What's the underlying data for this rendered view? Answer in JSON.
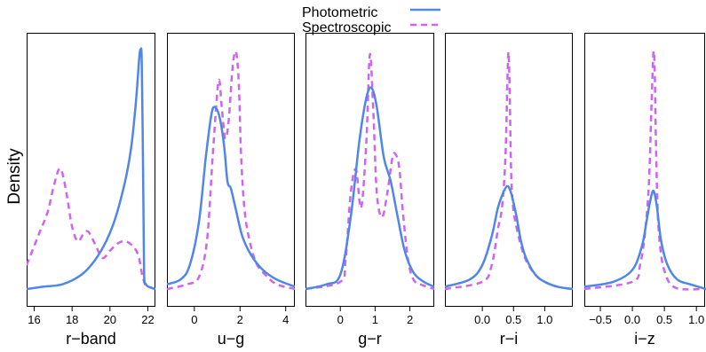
{
  "chart_data": {
    "type": "line",
    "ylabel": "Density",
    "legend": {
      "placement": "top-center",
      "entries": [
        {
          "label": "Photometric",
          "color": "#4f86e8",
          "dash": "solid"
        },
        {
          "label": "Spectroscopic",
          "color": "#cc66f0",
          "dash": "dashed"
        }
      ]
    },
    "panels": [
      {
        "xlabel": "r−band",
        "xlim": [
          15.6,
          22.4
        ],
        "ylim": [
          0,
          1
        ],
        "ticks": [
          16,
          18,
          20,
          22
        ],
        "tick_labels": [
          "16",
          "18",
          "20",
          "22"
        ],
        "series": [
          {
            "name": "Photometric",
            "x": [
              15.6,
              16.5,
              17.5,
              18.5,
              19.2,
              19.8,
              20.3,
              20.8,
              21.1,
              21.3,
              21.45,
              21.55,
              21.62,
              21.68,
              21.75,
              21.8,
              21.9,
              22.2,
              22.4
            ],
            "y": [
              0.0,
              0.01,
              0.02,
              0.06,
              0.12,
              0.2,
              0.3,
              0.45,
              0.58,
              0.72,
              0.86,
              0.97,
              1.0,
              0.95,
              0.5,
              0.08,
              0.02,
              0.005,
              0.0
            ]
          },
          {
            "name": "Spectroscopic",
            "x": [
              15.6,
              16.2,
              16.7,
              17.0,
              17.3,
              17.5,
              17.75,
              18.0,
              18.3,
              18.6,
              18.85,
              19.2,
              19.6,
              20.0,
              20.4,
              20.8,
              21.2,
              21.5,
              21.7,
              21.85,
              22.0,
              22.4
            ],
            "y": [
              0.1,
              0.22,
              0.32,
              0.42,
              0.5,
              0.48,
              0.38,
              0.26,
              0.2,
              0.23,
              0.24,
              0.19,
              0.13,
              0.16,
              0.19,
              0.2,
              0.18,
              0.14,
              0.06,
              0.02,
              0.01,
              0.0
            ]
          }
        ]
      },
      {
        "xlabel": "u−g",
        "xlim": [
          -1.2,
          4.4
        ],
        "ylim": [
          0,
          1
        ],
        "ticks": [
          0,
          2,
          4
        ],
        "tick_labels": [
          "0",
          "2",
          "4"
        ],
        "series": [
          {
            "name": "Photometric",
            "x": [
              -1.2,
              -0.6,
              -0.2,
              0.2,
              0.5,
              0.75,
              0.9,
              1.1,
              1.3,
              1.45,
              1.6,
              1.8,
              2.1,
              2.5,
              3.0,
              3.6,
              4.4
            ],
            "y": [
              0.02,
              0.04,
              0.1,
              0.28,
              0.55,
              0.73,
              0.76,
              0.72,
              0.6,
              0.45,
              0.42,
              0.34,
              0.22,
              0.14,
              0.08,
              0.04,
              0.01
            ]
          },
          {
            "name": "Spectroscopic",
            "x": [
              -1.2,
              -0.3,
              0.2,
              0.55,
              0.8,
              1.0,
              1.1,
              1.2,
              1.35,
              1.5,
              1.65,
              1.75,
              1.85,
              1.95,
              2.05,
              2.2,
              2.4,
              2.7,
              3.1,
              3.6,
              4.4
            ],
            "y": [
              0.0,
              0.02,
              0.05,
              0.2,
              0.55,
              0.82,
              0.87,
              0.76,
              0.63,
              0.7,
              0.9,
              0.98,
              0.98,
              0.85,
              0.55,
              0.33,
              0.21,
              0.11,
              0.06,
              0.02,
              0.0
            ]
          }
        ]
      },
      {
        "xlabel": "g−r",
        "xlim": [
          -1.0,
          2.7
        ],
        "ylim": [
          0,
          1
        ],
        "ticks": [
          0,
          1,
          2
        ],
        "tick_labels": [
          "0",
          "1",
          "2"
        ],
        "series": [
          {
            "name": "Photometric",
            "x": [
              -1.0,
              -0.4,
              0.0,
              0.3,
              0.55,
              0.75,
              0.9,
              1.05,
              1.25,
              1.45,
              1.65,
              1.85,
              2.1,
              2.4,
              2.7
            ],
            "y": [
              0.0,
              0.02,
              0.06,
              0.3,
              0.62,
              0.8,
              0.84,
              0.76,
              0.55,
              0.45,
              0.3,
              0.16,
              0.07,
              0.03,
              0.01
            ]
          },
          {
            "name": "Spectroscopic",
            "x": [
              -1.0,
              0.0,
              0.15,
              0.3,
              0.45,
              0.6,
              0.75,
              0.85,
              0.95,
              1.05,
              1.2,
              1.35,
              1.5,
              1.6,
              1.7,
              1.8,
              1.95,
              2.1,
              2.3,
              2.7
            ],
            "y": [
              0.0,
              0.03,
              0.12,
              0.4,
              0.5,
              0.34,
              0.62,
              0.98,
              0.74,
              0.4,
              0.3,
              0.4,
              0.55,
              0.56,
              0.5,
              0.32,
              0.12,
              0.04,
              0.02,
              0.0
            ]
          }
        ]
      },
      {
        "xlabel": "r−i",
        "xlim": [
          -0.6,
          1.45
        ],
        "ylim": [
          0,
          1
        ],
        "ticks": [
          0.0,
          0.5,
          1.0
        ],
        "tick_labels": [
          "0.0",
          "0.5",
          "1.0"
        ],
        "series": [
          {
            "name": "Photometric",
            "x": [
              -0.6,
              -0.2,
              0.0,
              0.15,
              0.25,
              0.33,
              0.4,
              0.45,
              0.5,
              0.55,
              0.62,
              0.7,
              0.85,
              1.0,
              1.2,
              1.45
            ],
            "y": [
              0.01,
              0.04,
              0.1,
              0.22,
              0.34,
              0.4,
              0.43,
              0.41,
              0.36,
              0.3,
              0.2,
              0.13,
              0.06,
              0.03,
              0.01,
              0.0
            ]
          },
          {
            "name": "Spectroscopic",
            "x": [
              -0.6,
              0.0,
              0.15,
              0.25,
              0.32,
              0.37,
              0.4,
              0.42,
              0.44,
              0.46,
              0.49,
              0.53,
              0.6,
              0.7,
              0.85,
              1.0,
              1.2,
              1.45
            ],
            "y": [
              0.0,
              0.03,
              0.1,
              0.25,
              0.35,
              0.55,
              0.85,
              0.99,
              0.8,
              0.5,
              0.35,
              0.28,
              0.2,
              0.12,
              0.06,
              0.03,
              0.01,
              0.0
            ]
          }
        ]
      },
      {
        "xlabel": "i−z",
        "xlim": [
          -0.75,
          1.15
        ],
        "ylim": [
          0,
          1
        ],
        "ticks": [
          -0.5,
          0.0,
          0.5,
          1.0
        ],
        "tick_labels": [
          "−0.5",
          "0.0",
          "0.5",
          "1.0"
        ],
        "series": [
          {
            "name": "Photometric",
            "x": [
              -0.75,
              -0.3,
              0.0,
              0.15,
              0.22,
              0.28,
              0.33,
              0.38,
              0.45,
              0.55,
              0.7,
              0.9,
              1.15
            ],
            "y": [
              0.01,
              0.03,
              0.08,
              0.18,
              0.28,
              0.37,
              0.41,
              0.35,
              0.2,
              0.1,
              0.04,
              0.02,
              0.0
            ]
          },
          {
            "name": "Spectroscopic",
            "x": [
              -0.75,
              0.0,
              0.12,
              0.2,
              0.26,
              0.3,
              0.33,
              0.35,
              0.37,
              0.4,
              0.45,
              0.52,
              0.6,
              0.75,
              1.15
            ],
            "y": [
              0.0,
              0.03,
              0.1,
              0.24,
              0.45,
              0.78,
              0.99,
              0.9,
              0.58,
              0.3,
              0.14,
              0.06,
              0.02,
              0.0,
              0.0
            ]
          }
        ]
      }
    ]
  }
}
